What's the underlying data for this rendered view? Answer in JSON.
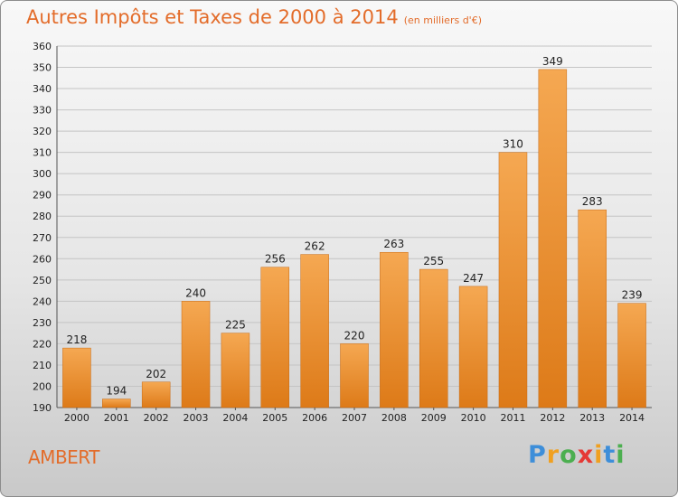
{
  "header": {
    "title": "Autres Impôts et Taxes de 2000 à 2014",
    "unit": "(en milliers d'€)"
  },
  "place": "AMBERT",
  "logo": {
    "letters": [
      "P",
      "r",
      "o",
      "x",
      "i",
      "t",
      "i"
    ],
    "colors": [
      "#3d8ed9",
      "#f0a020",
      "#4caf50",
      "#e53935",
      "#f0a020",
      "#3d8ed9",
      "#4caf50"
    ]
  },
  "chart_data": {
    "type": "bar",
    "title": "Autres Impôts et Taxes de 2000 à 2014",
    "subtitle": "(en milliers d'€)",
    "categories": [
      "2000",
      "2001",
      "2002",
      "2003",
      "2004",
      "2005",
      "2006",
      "2007",
      "2008",
      "2009",
      "2010",
      "2011",
      "2012",
      "2013",
      "2014"
    ],
    "values": [
      218,
      194,
      202,
      240,
      225,
      256,
      262,
      220,
      263,
      255,
      247,
      310,
      349,
      283,
      239
    ],
    "ylim": [
      190,
      360
    ],
    "yticks": [
      190,
      200,
      210,
      220,
      230,
      240,
      250,
      260,
      270,
      280,
      290,
      300,
      310,
      320,
      330,
      340,
      350,
      360
    ],
    "grid": true,
    "bar_color_top": "#f5a852",
    "bar_color_bottom": "#dd7a18"
  }
}
